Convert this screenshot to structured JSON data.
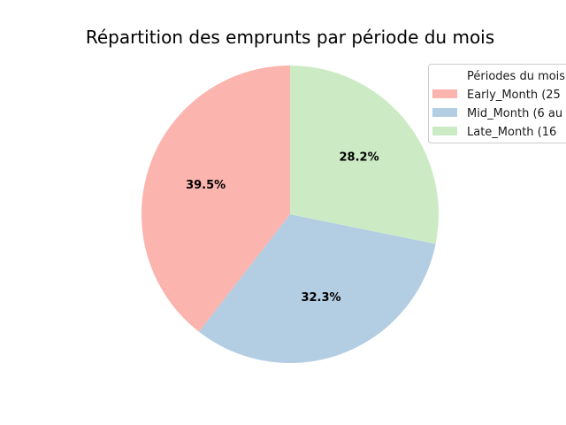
{
  "chart_data": {
    "type": "pie",
    "title": "Répartition des emprunts par période du mois",
    "legend_title": "Périodes du mois",
    "legend_position": "top-right",
    "start_angle_deg": 90,
    "direction": "counterclockwise",
    "slices": [
      {
        "label": "Early_Month (25",
        "value": 39.5,
        "pct_label": "39.5%",
        "color": "#fbb4ae"
      },
      {
        "label": "Mid_Month (6 au",
        "value": 32.3,
        "pct_label": "32.3%",
        "color": "#b3cde3"
      },
      {
        "label": "Late_Month (16",
        "value": 28.2,
        "pct_label": "28.2%",
        "color": "#ccebc5"
      }
    ]
  }
}
